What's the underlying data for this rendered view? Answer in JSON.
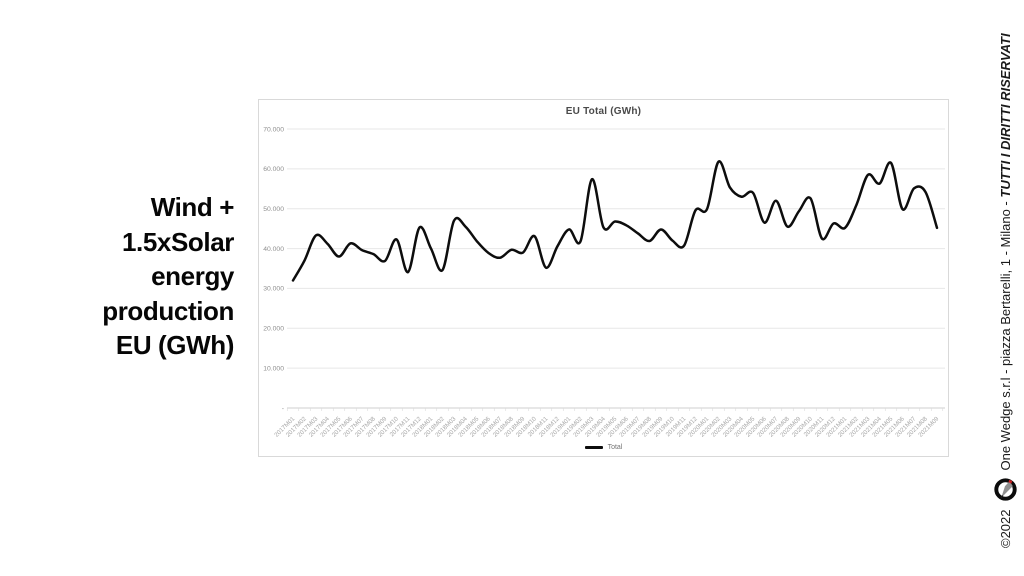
{
  "slide": {
    "left_title_lines": [
      "Wind +",
      "1.5xSolar",
      "energy",
      "production",
      "EU (GWh)"
    ],
    "copyright": "©2022",
    "credit_regular": "One Wedge s.r.l - piazza Bertarelli, 1 - Milano - ",
    "credit_bold": "TUTTI I DIRITTI RISERVATI"
  },
  "chart_data": {
    "type": "line",
    "title": "EU Total (GWh)",
    "legend_position": "bottom",
    "grid": true,
    "line_color": "#0d0d0d",
    "ylim": [
      0,
      70000
    ],
    "yticks": [
      {
        "value": 0,
        "label": "-"
      },
      {
        "value": 10000,
        "label": "10.000"
      },
      {
        "value": 20000,
        "label": "20.000"
      },
      {
        "value": 30000,
        "label": "30.000"
      },
      {
        "value": 40000,
        "label": "40.000"
      },
      {
        "value": 50000,
        "label": "50.000"
      },
      {
        "value": 60000,
        "label": "60.000"
      },
      {
        "value": 70000,
        "label": "70.000"
      }
    ],
    "categories": [
      "2017M01",
      "2017M02",
      "2017M03",
      "2017M04",
      "2017M05",
      "2017M06",
      "2017M07",
      "2017M08",
      "2017M09",
      "2017M10",
      "2017M11",
      "2017M12",
      "2018M01",
      "2018M02",
      "2018M03",
      "2018M04",
      "2018M05",
      "2018M06",
      "2018M07",
      "2018M08",
      "2018M09",
      "2018M10",
      "2018M11",
      "2018M12",
      "2019M01",
      "2019M02",
      "2019M03",
      "2019M04",
      "2019M05",
      "2019M06",
      "2019M07",
      "2019M08",
      "2019M09",
      "2019M10",
      "2019M11",
      "2019M12",
      "2020M01",
      "2020M02",
      "2020M03",
      "2020M04",
      "2020M05",
      "2020M06",
      "2020M07",
      "2020M08",
      "2020M09",
      "2020M10",
      "2020M11",
      "2020M12",
      "2021M01",
      "2021M02",
      "2021M03",
      "2021M04",
      "2021M05",
      "2021M06",
      "2021M07",
      "2021M08",
      "2021M09"
    ],
    "series": [
      {
        "name": "Total",
        "values": [
          32000,
          37000,
          43300,
          41200,
          38000,
          41300,
          39600,
          38600,
          36900,
          42300,
          34100,
          45300,
          40000,
          34600,
          47000,
          45500,
          41800,
          38900,
          37700,
          39700,
          39000,
          43100,
          35200,
          40600,
          44800,
          41800,
          57400,
          45300,
          46800,
          45800,
          43800,
          41900,
          44800,
          42000,
          40700,
          49600,
          49900,
          61800,
          55300,
          53000,
          54000,
          46500,
          52000,
          45500,
          49400,
          52600,
          42500,
          46300,
          45200,
          51000,
          58500,
          56300,
          61500,
          49900,
          55100,
          54200,
          45200
        ]
      }
    ]
  }
}
